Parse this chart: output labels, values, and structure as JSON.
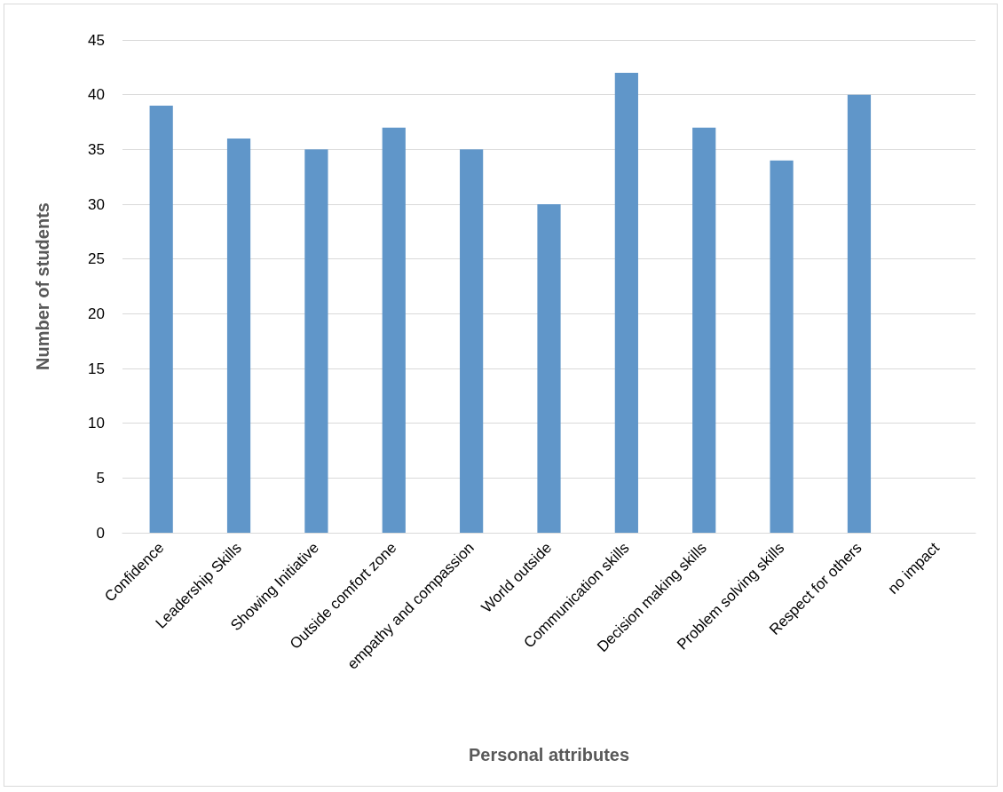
{
  "chart_data": {
    "type": "bar",
    "xlabel": "Personal attributes",
    "ylabel": "Number of students",
    "categories": [
      "Confidence",
      "Leadership Skills",
      "Showing Initiative",
      "Outside comfort zone",
      "empathy and compassion",
      "World outside",
      "Communication skills",
      "Decision making skills",
      "Problem solving skills",
      "Respect for others",
      "no impact"
    ],
    "values": [
      39,
      36,
      35,
      37,
      35,
      30,
      42,
      37,
      34,
      40,
      0
    ],
    "color": "#6096c9",
    "ylim": [
      0,
      45
    ],
    "yticks": [
      0,
      5,
      10,
      15,
      20,
      25,
      30,
      35,
      40,
      45
    ],
    "grid": "y"
  }
}
